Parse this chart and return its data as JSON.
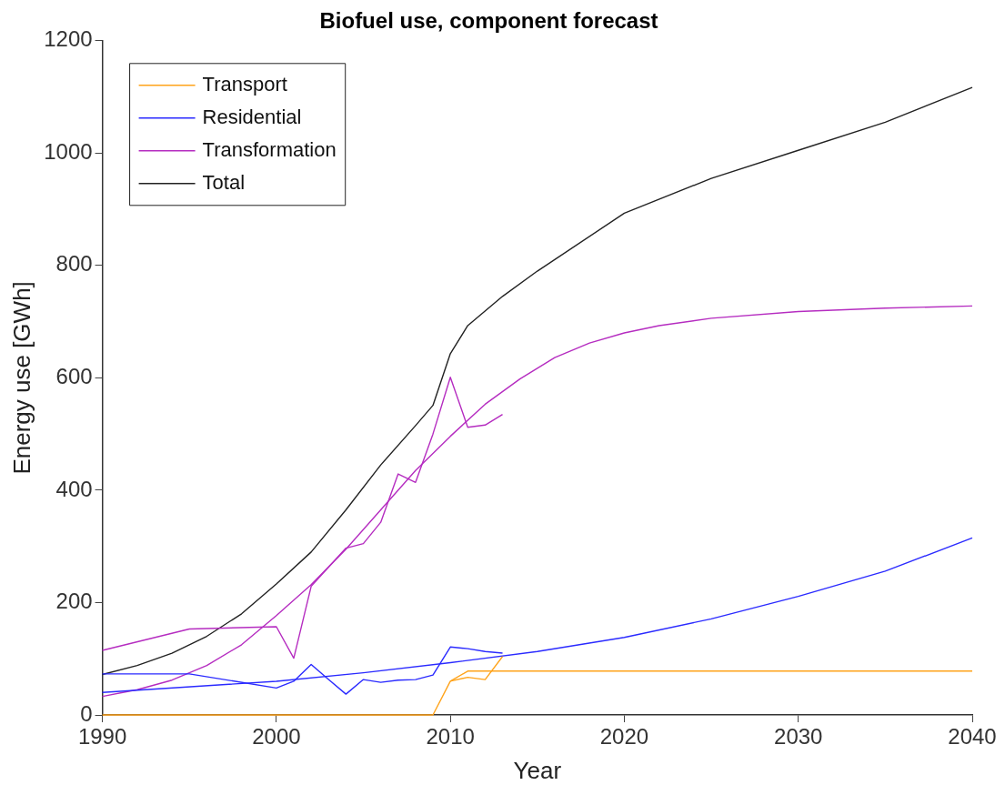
{
  "chart_data": {
    "type": "line",
    "title": "Biofuel use, component forecast",
    "xlabel": "Year",
    "ylabel": "Energy use [GWh]",
    "xlim": [
      1990,
      2040
    ],
    "xticks": [
      1990,
      2000,
      2010,
      2020,
      2030,
      2040
    ],
    "ylim": [
      0,
      1200
    ],
    "yticks": [
      0,
      200,
      400,
      600,
      800,
      1000,
      1200
    ],
    "grid": false,
    "legend": "top left",
    "marker": "none",
    "line_style": "solid",
    "series": [
      {
        "name": "Transport",
        "color": "#ffa31a",
        "x": [
          1990,
          2000,
          2009,
          2010,
          2011,
          2012,
          2013
        ],
        "values": [
          0,
          0,
          0,
          60,
          67,
          63,
          104
        ]
      },
      {
        "name": "Residential",
        "color": "#2a2aff",
        "x": [
          1990,
          1995,
          2000,
          2001,
          2002,
          2003,
          2004,
          2005,
          2006,
          2007,
          2008,
          2009,
          2010,
          2011,
          2012,
          2013
        ],
        "values": [
          73,
          73,
          48,
          60,
          90,
          63,
          37,
          63,
          58,
          62,
          63,
          71,
          121,
          118,
          113,
          110
        ]
      },
      {
        "name": "Transformation",
        "color": "#b52cc0",
        "x": [
          1990,
          1995,
          2000,
          2001,
          2002,
          2003,
          2004,
          2005,
          2006,
          2007,
          2008,
          2009,
          2010,
          2011,
          2012,
          2013
        ],
        "values": [
          115,
          153,
          157,
          101,
          229,
          263,
          297,
          305,
          343,
          429,
          414,
          500,
          601,
          512,
          516,
          535
        ]
      },
      {
        "name": "Total",
        "color": "#222222",
        "x": [
          1990,
          1992,
          1994,
          1996,
          1998,
          2000,
          2002,
          2004,
          2006,
          2008,
          2009,
          2010,
          2011,
          2013,
          2015,
          2020,
          2025,
          2030,
          2035,
          2040
        ],
        "values": [
          72,
          88,
          110,
          140,
          180,
          233,
          290,
          365,
          445,
          515,
          551,
          643,
          693,
          745,
          790,
          893,
          955,
          1005,
          1055,
          1117
        ]
      },
      {
        "color": "#ffa31a",
        "x": [
          2010,
          2011,
          2020,
          2030,
          2040
        ],
        "values": [
          60,
          78,
          78,
          78,
          78
        ]
      },
      {
        "color": "#2a2aff",
        "x": [
          1990,
          2000,
          2005,
          2010,
          2015,
          2020,
          2025,
          2030,
          2035,
          2040
        ],
        "values": [
          40,
          60,
          75,
          93,
          113,
          138,
          171,
          211,
          256,
          315
        ]
      },
      {
        "color": "#b52cc0",
        "x": [
          1990,
          1992,
          1994,
          1996,
          1998,
          2000,
          2002,
          2004,
          2006,
          2008,
          2010,
          2012,
          2014,
          2016,
          2018,
          2020,
          2022,
          2025,
          2030,
          2035,
          2040
        ],
        "values": [
          33,
          45,
          62,
          88,
          125,
          177,
          232,
          295,
          365,
          435,
          496,
          553,
          598,
          636,
          662,
          680,
          693,
          706,
          718,
          724,
          728
        ]
      }
    ]
  }
}
